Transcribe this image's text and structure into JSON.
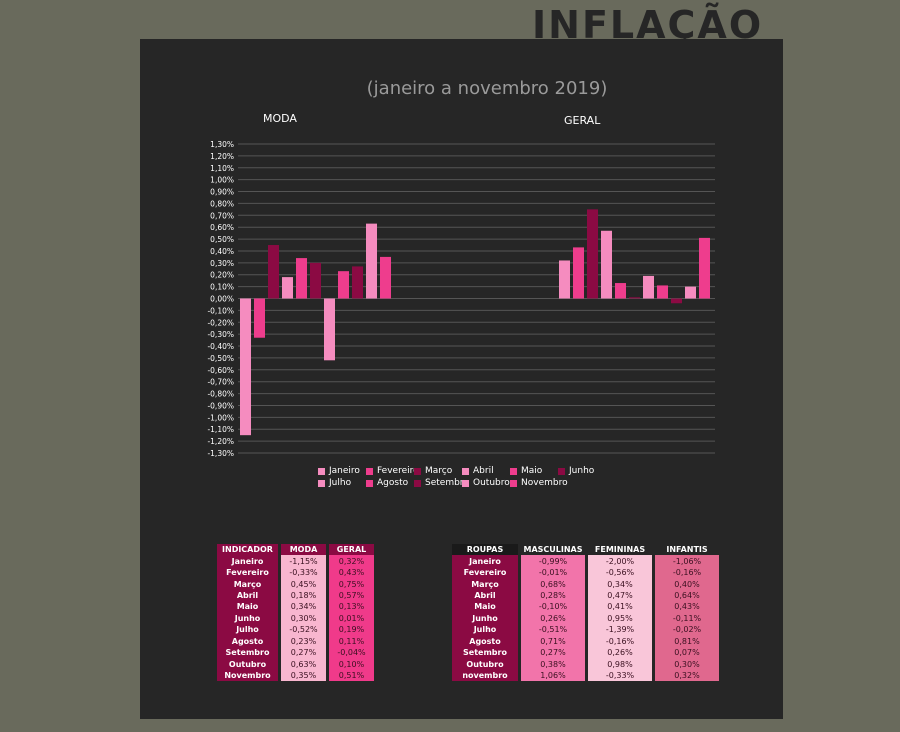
{
  "title": "INFLAÇÃO",
  "subtitle": "(janeiro a novembro 2019)",
  "colors": {
    "background": "#696a5c",
    "panel": "#262626",
    "months": [
      "#f58cbf",
      "#ee3d8d",
      "#8b0a43",
      "#f58cbf",
      "#ee3d8d",
      "#8b0a43",
      "#f58cbf",
      "#ee3d8d",
      "#8b0a43",
      "#f58cbf",
      "#ee3d8d"
    ]
  },
  "chart_data": {
    "type": "bar",
    "categories": [
      "MODA",
      "GERAL"
    ],
    "yticks": [
      "1,30%",
      "1,20%",
      "1,10%",
      "1,00%",
      "0,90%",
      "0,80%",
      "0,70%",
      "0,60%",
      "0,50%",
      "0,40%",
      "0,30%",
      "0,20%",
      "0,10%",
      "0,00%",
      "-0,10%",
      "-0,20%",
      "-0,30%",
      "-0,40%",
      "-0,50%",
      "-0,60%",
      "-0,70%",
      "-0,80%",
      "-0,90%",
      "-1,00%",
      "-1,10%",
      "-1,20%",
      "-1,30%"
    ],
    "ylim": [
      -1.3,
      1.3
    ],
    "series": [
      {
        "name": "Janeiro",
        "values": [
          -1.15,
          0.32
        ]
      },
      {
        "name": "Fevereiro",
        "values": [
          -0.33,
          0.43
        ]
      },
      {
        "name": "Março",
        "values": [
          0.45,
          0.75
        ]
      },
      {
        "name": "Abril",
        "values": [
          0.18,
          0.57
        ]
      },
      {
        "name": "Maio",
        "values": [
          0.34,
          0.13
        ]
      },
      {
        "name": "Junho",
        "values": [
          0.3,
          0.01
        ]
      },
      {
        "name": "Julho",
        "values": [
          -0.52,
          0.19
        ]
      },
      {
        "name": "Agosto",
        "values": [
          0.23,
          0.11
        ]
      },
      {
        "name": "Setembro",
        "values": [
          0.27,
          -0.04
        ]
      },
      {
        "name": "Outubro",
        "values": [
          0.63,
          0.1
        ]
      },
      {
        "name": "Novembro",
        "values": [
          0.35,
          0.51
        ]
      }
    ],
    "legend_position": "bottom"
  },
  "table1": {
    "headers": [
      "INDICADOR",
      "MODA",
      "GERAL"
    ],
    "rows": [
      [
        "Janeiro",
        "-1,15%",
        "0,32%"
      ],
      [
        "Fevereiro",
        "-0,33%",
        "0,43%"
      ],
      [
        "Março",
        "0,45%",
        "0,75%"
      ],
      [
        "Abril",
        "0,18%",
        "0,57%"
      ],
      [
        "Maio",
        "0,34%",
        "0,13%"
      ],
      [
        "Junho",
        "0,30%",
        "0,01%"
      ],
      [
        "Julho",
        "-0,52%",
        "0,19%"
      ],
      [
        "Agosto",
        "0,23%",
        "0,11%"
      ],
      [
        "Setembro",
        "0,27%",
        "-0,04%"
      ],
      [
        "Outubro",
        "0,63%",
        "0,10%"
      ],
      [
        "Novembro",
        "0,35%",
        "0,51%"
      ]
    ]
  },
  "table2": {
    "headers": [
      "ROUPAS",
      "MASCULINAS",
      "FEMININAS",
      "INFANTIS"
    ],
    "rows": [
      [
        "Janeiro",
        "-0,99%",
        "-2,00%",
        "-1,06%"
      ],
      [
        "Fevereiro",
        "-0,01%",
        "-0,56%",
        "-0,16%"
      ],
      [
        "Março",
        "0,68%",
        "0,34%",
        "0,40%"
      ],
      [
        "Abril",
        "0,28%",
        "0,47%",
        "0,64%"
      ],
      [
        "Maio",
        "-0,10%",
        "0,41%",
        "0,43%"
      ],
      [
        "Junho",
        "0,26%",
        "0,95%",
        "-0,11%"
      ],
      [
        "Julho",
        "-0,51%",
        "-1,39%",
        "-0,02%"
      ],
      [
        "Agosto",
        "0,71%",
        "-0,16%",
        "0,81%"
      ],
      [
        "Setembro",
        "0,27%",
        "0,26%",
        "0,07%"
      ],
      [
        "Outubro",
        "0,38%",
        "0,98%",
        "0,30%"
      ],
      [
        "novembro",
        "1,06%",
        "-0,33%",
        "0,32%"
      ]
    ]
  }
}
